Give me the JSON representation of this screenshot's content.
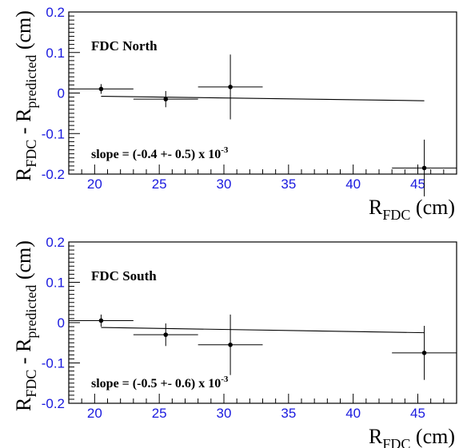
{
  "chart_data": [
    {
      "type": "scatter",
      "title": "FDC North",
      "xlabel_main": "R",
      "xlabel_sub": "FDC",
      "xlabel_unit": " (cm)",
      "ylabel_main1": "R",
      "ylabel_sub1": "FDC",
      "ylabel_mid": " - R",
      "ylabel_sub2": "predicted",
      "ylabel_unit": " (cm)",
      "xlim": [
        18,
        48
      ],
      "ylim": [
        -0.2,
        0.2
      ],
      "x_ticks": [
        "20",
        "25",
        "30",
        "35",
        "40",
        "45"
      ],
      "y_ticks": [
        "-0.2",
        "-0.1",
        "0",
        "0.1",
        "0.2"
      ],
      "annotation_main": "slope = (-0.4 +- 0.5) x 10",
      "annotation_exp": "-3",
      "points": [
        {
          "x": 20.5,
          "y": 0.01,
          "xerr": 2.5,
          "yerr": 0.012
        },
        {
          "x": 25.5,
          "y": -0.015,
          "xerr": 2.5,
          "yerr": 0.02
        },
        {
          "x": 30.5,
          "y": 0.015,
          "xerr": 2.5,
          "yerr": 0.08
        },
        {
          "x": 45.5,
          "y": -0.185,
          "xerr": 2.5,
          "yerr": 0.07
        }
      ],
      "fit": {
        "x0": 20.5,
        "y0": -0.008,
        "x1": 45.5,
        "y1": -0.019
      }
    },
    {
      "type": "scatter",
      "title": "FDC South",
      "xlabel_main": "R",
      "xlabel_sub": "FDC",
      "xlabel_unit": " (cm)",
      "ylabel_main1": "R",
      "ylabel_sub1": "FDC",
      "ylabel_mid": " - R",
      "ylabel_sub2": "predicted",
      "ylabel_unit": " (cm)",
      "xlim": [
        18,
        48
      ],
      "ylim": [
        -0.2,
        0.2
      ],
      "x_ticks": [
        "20",
        "25",
        "30",
        "35",
        "40",
        "45"
      ],
      "y_ticks": [
        "-0.2",
        "-0.1",
        "0",
        "0.1",
        "0.2"
      ],
      "annotation_main": "slope = (-0.5 +- 0.6) x 10",
      "annotation_exp": "-3",
      "points": [
        {
          "x": 20.5,
          "y": 0.005,
          "xerr": 2.5,
          "yerr": 0.015
        },
        {
          "x": 25.5,
          "y": -0.03,
          "xerr": 2.5,
          "yerr": 0.028
        },
        {
          "x": 30.5,
          "y": -0.055,
          "xerr": 2.5,
          "yerr": 0.075
        },
        {
          "x": 45.5,
          "y": -0.075,
          "xerr": 2.5,
          "yerr": 0.067
        }
      ],
      "fit": {
        "x0": 20.5,
        "y0": -0.012,
        "x1": 45.5,
        "y1": -0.025
      }
    }
  ]
}
